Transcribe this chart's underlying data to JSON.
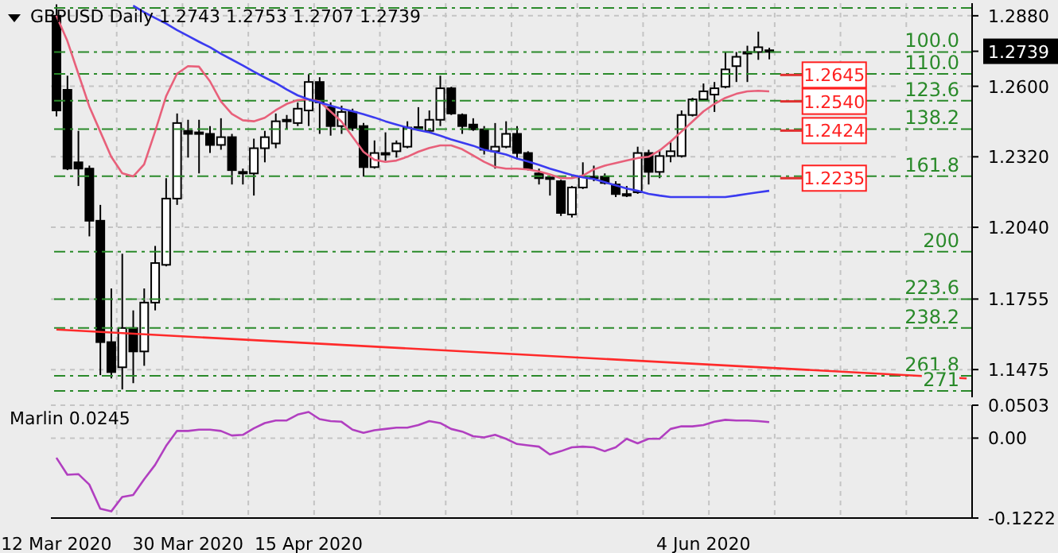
{
  "chart_data": [
    {
      "type": "candlestick",
      "title": "GBPUSD Daily 1.2743 1.2753 1.2707 1.2739",
      "categories": [
        null,
        null,
        null,
        null,
        null,
        null,
        null,
        null,
        null,
        null,
        null,
        null,
        null,
        null,
        null,
        null,
        null,
        null,
        null,
        null,
        null,
        null,
        null,
        null,
        null,
        null,
        null,
        null,
        null,
        null,
        null,
        null,
        null,
        null,
        null,
        null,
        null,
        null,
        null,
        null,
        null,
        null,
        null,
        null,
        null,
        null,
        null,
        null,
        null,
        null,
        null,
        null,
        null,
        null,
        null,
        null,
        null,
        null,
        null,
        null,
        null,
        null,
        null,
        null,
        null,
        null,
        null,
        null,
        null,
        null,
        null,
        null,
        null,
        null,
        null,
        null,
        null,
        null,
        null,
        null,
        null,
        null,
        null,
        null
      ],
      "ohlc": [
        [
          1.288,
          1.2925,
          1.248,
          1.2504
        ],
        [
          1.2586,
          1.2642,
          1.2267,
          1.2273
        ],
        [
          1.2298,
          1.2423,
          1.2204,
          1.2273
        ],
        [
          1.2273,
          1.2285,
          1.2004,
          1.2066
        ],
        [
          1.2066,
          1.2129,
          1.1453,
          1.1584
        ],
        [
          1.1584,
          1.1797,
          1.144,
          1.1465
        ],
        [
          1.1484,
          1.1935,
          1.1396,
          1.164
        ],
        [
          1.164,
          1.171,
          1.1421,
          1.1547
        ],
        [
          1.1547,
          1.1797,
          1.149,
          1.1741
        ],
        [
          1.1741,
          1.1966,
          1.171,
          1.1898
        ],
        [
          1.1891,
          1.2235,
          1.1885,
          1.2154
        ],
        [
          1.2154,
          1.2492,
          1.2129,
          1.2454
        ],
        [
          1.2423,
          1.2467,
          1.2317,
          1.2411
        ],
        [
          1.2417,
          1.2467,
          1.2254,
          1.2411
        ],
        [
          1.2411,
          1.2442,
          1.2335,
          1.2367
        ],
        [
          1.2367,
          1.2473,
          1.2348,
          1.2398
        ],
        [
          1.2398,
          1.2411,
          1.221,
          1.2267
        ],
        [
          1.226,
          1.2273,
          1.221,
          1.2254
        ],
        [
          1.2254,
          1.2392,
          1.2166,
          1.2354
        ],
        [
          1.2354,
          1.2423,
          1.2298,
          1.2398
        ],
        [
          1.2373,
          1.2492,
          1.2354,
          1.2461
        ],
        [
          1.2467,
          1.2486,
          1.2429,
          1.2461
        ],
        [
          1.2454,
          1.2536,
          1.2442,
          1.2511
        ],
        [
          1.2504,
          1.2648,
          1.2442,
          1.2617
        ],
        [
          1.2617,
          1.2636,
          1.2411,
          1.2536
        ],
        [
          1.2517,
          1.2536,
          1.2404,
          1.2442
        ],
        [
          1.2442,
          1.2523,
          1.2411,
          1.2498
        ],
        [
          1.2498,
          1.2511,
          1.2423,
          1.2435
        ],
        [
          1.2442,
          1.2454,
          1.2241,
          1.2279
        ],
        [
          1.2279,
          1.2385,
          1.2273,
          1.2335
        ],
        [
          1.2329,
          1.2417,
          1.2304,
          1.2335
        ],
        [
          1.2342,
          1.2385,
          1.2317,
          1.2373
        ],
        [
          1.236,
          1.2461,
          1.2354,
          1.2436
        ],
        [
          1.2436,
          1.2517,
          1.2423,
          1.2438
        ],
        [
          1.2423,
          1.2504,
          1.2417,
          1.2467
        ],
        [
          1.2467,
          1.2642,
          1.2442,
          1.2592
        ],
        [
          1.2592,
          1.2598,
          1.2486,
          1.2492
        ],
        [
          1.2486,
          1.2492,
          1.2411,
          1.2442
        ],
        [
          1.2448,
          1.2473,
          1.2423,
          1.2429
        ],
        [
          1.2429,
          1.2442,
          1.2329,
          1.2348
        ],
        [
          1.2342,
          1.2454,
          1.2273,
          1.236
        ],
        [
          1.236,
          1.2461,
          1.2354,
          1.2411
        ],
        [
          1.2411,
          1.2442,
          1.231,
          1.2335
        ],
        [
          1.2335,
          1.2342,
          1.2266,
          1.2273
        ],
        [
          1.2254,
          1.2273,
          1.221,
          1.2235
        ],
        [
          1.2238,
          1.2241,
          1.2166,
          1.2232
        ],
        [
          1.2223,
          1.2229,
          1.2085,
          1.2097
        ],
        [
          1.2091,
          1.2204,
          1.2079,
          1.2198
        ],
        [
          1.2198,
          1.2298,
          1.2192,
          1.2241
        ],
        [
          1.2241,
          1.2285,
          1.2223,
          1.2235
        ],
        [
          1.2241,
          1.2254,
          1.221,
          1.2216
        ],
        [
          1.221,
          1.2223,
          1.216,
          1.2172
        ],
        [
          1.2172,
          1.2204,
          1.216,
          1.2166
        ],
        [
          1.2179,
          1.236,
          1.2173,
          1.2335
        ],
        [
          1.2335,
          1.2348,
          1.221,
          1.226
        ],
        [
          1.226,
          1.2348,
          1.2235,
          1.2323
        ],
        [
          1.2323,
          1.2379,
          1.2298,
          1.2342
        ],
        [
          1.2323,
          1.2504,
          1.2317,
          1.2486
        ],
        [
          1.2486,
          1.2554,
          1.248,
          1.2548
        ],
        [
          1.2548,
          1.2611,
          1.2542,
          1.258
        ],
        [
          1.2567,
          1.2617,
          1.2498,
          1.2592
        ],
        [
          1.2598,
          1.2736,
          1.2592,
          1.2667
        ],
        [
          1.268,
          1.2736,
          1.2617,
          1.2717
        ],
        [
          1.273,
          1.2761,
          1.2617,
          1.2736
        ],
        [
          1.2736,
          1.2817,
          1.2705,
          1.2755
        ],
        [
          1.2743,
          1.2753,
          1.2707,
          1.2739
        ],
        null,
        null,
        null,
        null,
        null,
        null,
        null,
        null,
        null,
        null,
        null,
        null,
        null,
        null,
        null,
        null,
        null,
        null
      ],
      "series": [
        {
          "type": "line",
          "color": "#e8607a",
          "values": [
            1.288,
            1.278,
            1.265,
            1.252,
            1.242,
            1.232,
            1.2255,
            1.2242,
            1.229,
            1.242,
            1.256,
            1.265,
            1.268,
            1.2678,
            1.262,
            1.254,
            1.249,
            1.2465,
            1.2461,
            1.2475,
            1.2505,
            1.253,
            1.2545,
            1.2548,
            1.254,
            1.25,
            1.246,
            1.24,
            1.234,
            1.2308,
            1.23,
            1.2305,
            1.232,
            1.234,
            1.2355,
            1.2365,
            1.2365,
            1.235,
            1.2325,
            1.23,
            1.228,
            1.2273,
            1.2273,
            1.227,
            1.2262,
            1.225,
            1.2235,
            1.2235,
            1.2245,
            1.227,
            1.2285,
            1.2295,
            1.2305,
            1.2315,
            1.232,
            1.2345,
            1.238,
            1.242,
            1.246,
            1.25,
            1.253,
            1.2554,
            1.257,
            1.258,
            1.2582,
            1.258,
            null,
            null,
            null,
            null,
            null,
            null,
            null,
            null,
            null,
            null,
            null,
            null,
            null,
            null,
            null,
            null,
            null,
            null
          ]
        },
        {
          "type": "line",
          "color": "#3b3bf0",
          "values": [
            null,
            null,
            null,
            null,
            null,
            null,
            null,
            1.292,
            1.2894,
            1.2871,
            1.2849,
            1.2823,
            1.28,
            1.2777,
            1.2755,
            1.2729,
            1.2706,
            1.2683,
            1.2658,
            1.2635,
            1.2613,
            1.2587,
            1.2564,
            1.2548,
            1.2536,
            1.2523,
            1.2511,
            1.2501,
            1.2489,
            1.2476,
            1.2461,
            1.2448,
            1.2436,
            1.2426,
            1.2417,
            1.2404,
            1.2389,
            1.2376,
            1.2364,
            1.2348,
            1.2339,
            1.2329,
            1.2313,
            1.2301,
            1.2288,
            1.2273,
            1.226,
            1.2248,
            1.2238,
            1.2232,
            1.2219,
            1.2207,
            1.2194,
            1.2185,
            1.2173,
            1.2166,
            1.216,
            1.216,
            1.216,
            1.216,
            1.216,
            1.216,
            1.2166,
            1.2173,
            1.2179,
            1.2185,
            null,
            null,
            null,
            null,
            null,
            null,
            null,
            null,
            null,
            null,
            null,
            null,
            null,
            null,
            null,
            null,
            null,
            null
          ]
        },
        {
          "type": "line",
          "color": "#ff2a2a",
          "values": [
            1.1634,
            null,
            null,
            null,
            null,
            null,
            null,
            null,
            null,
            null,
            null,
            null,
            null,
            null,
            null,
            null,
            null,
            null,
            null,
            null,
            null,
            null,
            null,
            null,
            null,
            null,
            null,
            null,
            null,
            null,
            null,
            null,
            null,
            null,
            null,
            null,
            null,
            null,
            null,
            null,
            null,
            null,
            null,
            null,
            null,
            null,
            null,
            null,
            null,
            null,
            null,
            null,
            null,
            null,
            null,
            null,
            null,
            null,
            null,
            null,
            null,
            null,
            null,
            null,
            null,
            null,
            null,
            null,
            null,
            null,
            null,
            null,
            null,
            null,
            null,
            null,
            null,
            null,
            null,
            null,
            null,
            null,
            null,
            1.144
          ]
        }
      ],
      "ylim": [
        1.1365,
        1.293
      ],
      "yticks": [
        {
          "value": 1.288,
          "label": "1.2880"
        },
        {
          "value": 1.2739,
          "label": "1.2739"
        },
        {
          "value": 1.26,
          "label": "1.2600"
        },
        {
          "value": 1.232,
          "label": "1.2320"
        },
        {
          "value": 1.204,
          "label": "1.2040"
        },
        {
          "value": 1.1755,
          "label": "1.1755"
        },
        {
          "value": 1.1475,
          "label": "1.1475"
        }
      ],
      "grid": true,
      "tick_labels": "y",
      "ref_lines": [
        {
          "axis": "y",
          "value": 1.2911,
          "color": "#2a8a2a",
          "line_style": "dashed"
        },
        {
          "axis": "y",
          "value": 1.2736,
          "color": "#2a8a2a",
          "line_style": "dashed"
        },
        {
          "axis": "y",
          "value": 1.2649,
          "color": "#2a8a2a",
          "line_style": "dashed"
        },
        {
          "axis": "y",
          "value": 1.2543,
          "color": "#2a8a2a",
          "line_style": "dashed"
        },
        {
          "axis": "y",
          "value": 1.243,
          "color": "#2a8a2a",
          "line_style": "dashed"
        },
        {
          "axis": "y",
          "value": 1.2243,
          "color": "#2a8a2a",
          "line_style": "dashed"
        },
        {
          "axis": "y",
          "value": 1.1943,
          "color": "#2a8a2a",
          "line_style": "dashed"
        },
        {
          "axis": "y",
          "value": 1.1755,
          "color": "#2a8a2a",
          "line_style": "dashed"
        },
        {
          "axis": "y",
          "value": 1.164,
          "color": "#2a8a2a",
          "line_style": "dashed"
        },
        {
          "axis": "y",
          "value": 1.145,
          "color": "#2a8a2a",
          "line_style": "dashed"
        },
        {
          "axis": "y",
          "value": 1.139,
          "color": "#2a8a2a",
          "line_style": "dashed"
        }
      ],
      "annotations": [
        {
          "text": "100.0",
          "y": 1.2736
        },
        {
          "text": "110.0",
          "y": 1.2649
        },
        {
          "text": "123.6",
          "y": 1.2543
        },
        {
          "text": "138.2",
          "y": 1.243
        },
        {
          "text": "161.8",
          "y": 1.2243
        },
        {
          "text": "200",
          "y": 1.1943
        },
        {
          "text": "223.6",
          "y": 1.1755
        },
        {
          "text": "238.2",
          "y": 1.164
        },
        {
          "text": "261.8",
          "y": 1.145
        },
        {
          "text": "271",
          "y": 1.139
        },
        {
          "text": "1.2645",
          "y": 1.2645
        },
        {
          "text": "1.2540",
          "y": 1.254
        },
        {
          "text": "1.2424",
          "y": 1.2424
        },
        {
          "text": "1.2235",
          "y": 1.2235
        }
      ]
    },
    {
      "type": "line",
      "title": "Marlin 0.0245",
      "categories": [
        "12 Mar 2020",
        null,
        null,
        null,
        null,
        null,
        null,
        null,
        null,
        null,
        null,
        null,
        "30 Mar 2020",
        null,
        null,
        null,
        null,
        null,
        null,
        null,
        null,
        null,
        null,
        "15 Apr 2020",
        null,
        null,
        null,
        null,
        null,
        null,
        null,
        null,
        null,
        null,
        null,
        null,
        null,
        null,
        null,
        null,
        null,
        null,
        null,
        null,
        null,
        null,
        null,
        null,
        null,
        null,
        null,
        null,
        null,
        null,
        null,
        null,
        null,
        null,
        null,
        "4 Jun 2020",
        null,
        null,
        null,
        null,
        null,
        null,
        null,
        null,
        null,
        null,
        null,
        null,
        null,
        null,
        null,
        null,
        null,
        null,
        null,
        null,
        null,
        null,
        null,
        null
      ],
      "values": [
        -0.03,
        -0.056,
        -0.055,
        -0.071,
        -0.108,
        -0.112,
        -0.09,
        -0.087,
        -0.063,
        -0.041,
        -0.012,
        0.011,
        0.011,
        0.013,
        0.013,
        0.011,
        0.004,
        0.005,
        0.015,
        0.023,
        0.027,
        0.027,
        0.036,
        0.04,
        0.029,
        0.026,
        0.025,
        0.013,
        0.008,
        0.012,
        0.014,
        0.016,
        0.016,
        0.02,
        0.026,
        0.023,
        0.014,
        0.01,
        0.003,
        0.001,
        0.005,
        -0.001,
        -0.009,
        -0.011,
        -0.013,
        -0.025,
        -0.02,
        -0.014,
        -0.013,
        -0.014,
        -0.02,
        -0.014,
        -0.001,
        -0.008,
        -0.001,
        -0.001,
        0.014,
        0.018,
        0.018,
        0.02,
        0.025,
        0.028,
        0.027,
        0.027,
        0.026,
        0.0245,
        null,
        null,
        null,
        null,
        null,
        null,
        null,
        null,
        null,
        null,
        null,
        null,
        null,
        null,
        null,
        null,
        null,
        null
      ],
      "color": "#b13fc0",
      "ylim": [
        -0.1222,
        0.0503
      ],
      "yticks": [
        {
          "value": 0.0503,
          "label": "0.0503"
        },
        {
          "value": 0,
          "label": "0.00"
        },
        {
          "value": -0.1222,
          "label": "-0.1222"
        }
      ],
      "grid": true
    }
  ]
}
